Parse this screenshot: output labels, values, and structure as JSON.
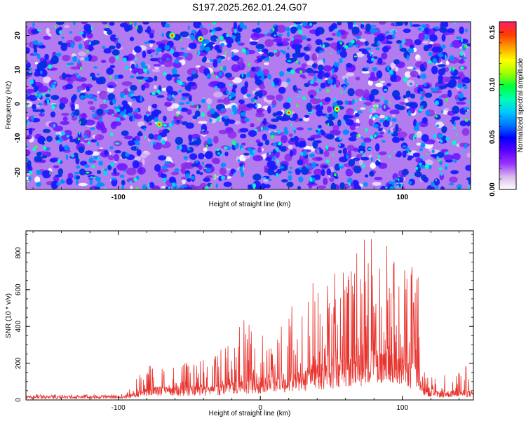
{
  "page_title": "S197.2025.262.01.24.G07",
  "chart_data": [
    {
      "type": "heatmap",
      "name": "spectrogram",
      "title": "S197.2025.262.01.24.G07",
      "xlabel": "Height of straight line (km)",
      "ylabel": "Frequency (Hz)",
      "xlim": [
        -165,
        148
      ],
      "ylim": [
        -25,
        24
      ],
      "x_ticks": [
        -100,
        0,
        100
      ],
      "x_tick_labels": [
        "-100",
        "0",
        "100"
      ],
      "y_ticks": [
        -20,
        -10,
        0,
        10,
        20
      ],
      "y_tick_labels": [
        "-20",
        "-10",
        "0",
        "10",
        "20"
      ],
      "grid": false,
      "colorbar": {
        "label": "Normalized spectral amplitude",
        "range": [
          0.0,
          0.16
        ],
        "ticks": [
          0.0,
          0.05,
          0.1,
          0.15
        ],
        "tick_labels": [
          "0.00",
          "0.05",
          "0.10",
          "0.15"
        ],
        "colors": [
          "#ffffff",
          "#d8b8ec",
          "#9a33ff",
          "#5a00ff",
          "#0000ff",
          "#0078ff",
          "#00c8ff",
          "#00ffb4",
          "#00ff3c",
          "#a0ff00",
          "#ffff00",
          "#ffa000",
          "#ff3c00",
          "#ff1e64"
        ]
      },
      "hotspots": [
        {
          "x": -71,
          "y": -6
        },
        {
          "x": 20,
          "y": -2.5
        },
        {
          "x": 54,
          "y": -1.5
        },
        {
          "x": -42,
          "y": 19
        },
        {
          "x": -62,
          "y": 20
        }
      ]
    },
    {
      "type": "line",
      "name": "snr",
      "xlabel": "Height of straight line (km)",
      "ylabel": "SNR (10 * v/v)",
      "xlim": [
        -165,
        150
      ],
      "ylim": [
        0,
        920
      ],
      "x_ticks": [
        -100,
        0,
        100
      ],
      "x_tick_labels": [
        "-100",
        "0",
        "100"
      ],
      "y_ticks": [
        0,
        200,
        400,
        600,
        800
      ],
      "y_tick_labels": [
        "0",
        "200",
        "400",
        "600",
        "800"
      ],
      "grid": false,
      "color": "#e8332e",
      "envelope": [
        {
          "x": -165,
          "base": 18,
          "peak": 30
        },
        {
          "x": -95,
          "base": 18,
          "peak": 30
        },
        {
          "x": -85,
          "base": 40,
          "peak": 140
        },
        {
          "x": -73,
          "base": 60,
          "peak": 230
        },
        {
          "x": -60,
          "base": 55,
          "peak": 180
        },
        {
          "x": -45,
          "base": 60,
          "peak": 230
        },
        {
          "x": -30,
          "base": 70,
          "peak": 260
        },
        {
          "x": -12,
          "base": 90,
          "peak": 440
        },
        {
          "x": 5,
          "base": 100,
          "peak": 390
        },
        {
          "x": 18,
          "base": 110,
          "peak": 470
        },
        {
          "x": 28,
          "base": 130,
          "peak": 590
        },
        {
          "x": 38,
          "base": 150,
          "peak": 650
        },
        {
          "x": 50,
          "base": 170,
          "peak": 700
        },
        {
          "x": 60,
          "base": 190,
          "peak": 760
        },
        {
          "x": 72,
          "base": 210,
          "peak": 880
        },
        {
          "x": 80,
          "base": 230,
          "peak": 900
        },
        {
          "x": 86,
          "base": 240,
          "peak": 920
        },
        {
          "x": 95,
          "base": 200,
          "peak": 830
        },
        {
          "x": 105,
          "base": 170,
          "peak": 760
        },
        {
          "x": 112,
          "base": 150,
          "peak": 670
        },
        {
          "x": 116,
          "base": 40,
          "peak": 120
        },
        {
          "x": 130,
          "base": 40,
          "peak": 150
        },
        {
          "x": 150,
          "base": 45,
          "peak": 200
        }
      ]
    }
  ]
}
